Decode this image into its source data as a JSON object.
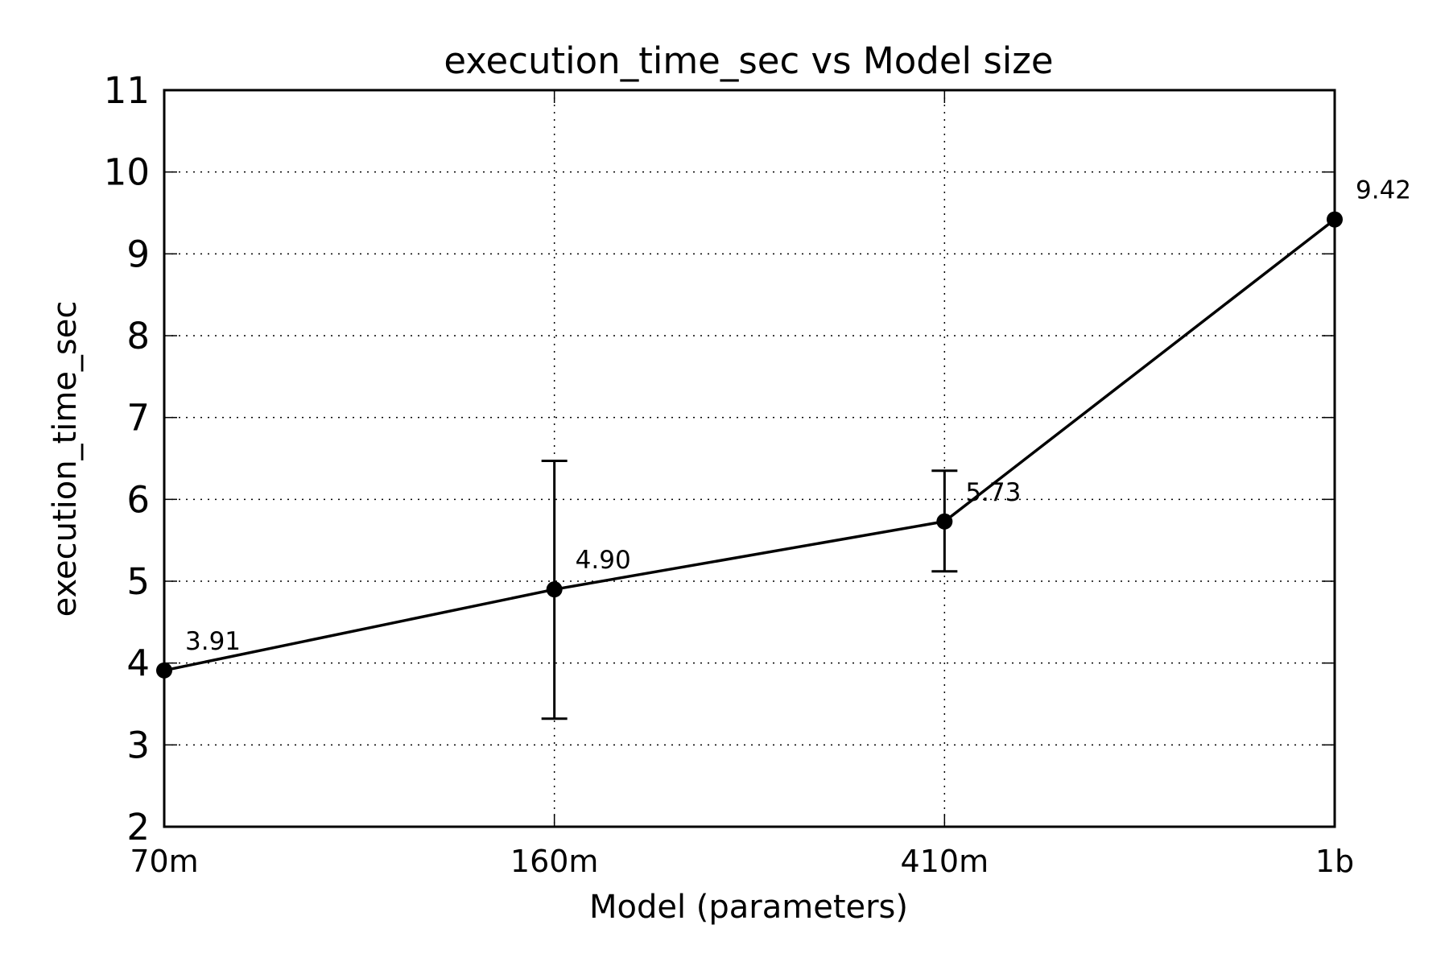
{
  "chart_data": {
    "type": "line",
    "title": "execution_time_sec vs Model size",
    "xlabel": "Model (parameters)",
    "ylabel": "execution_time_sec",
    "categories": [
      "70m",
      "160m",
      "410m",
      "1b"
    ],
    "values": [
      3.91,
      4.9,
      5.73,
      9.42
    ],
    "data_labels": [
      "3.91",
      "4.90",
      "5.73",
      "9.42"
    ],
    "error_low": [
      null,
      3.32,
      5.12,
      null
    ],
    "error_high": [
      null,
      6.47,
      6.35,
      null
    ],
    "ylim": [
      2,
      11
    ],
    "yticks": [
      2,
      3,
      4,
      5,
      6,
      7,
      8,
      9,
      10,
      11
    ],
    "ytick_labels": [
      "2",
      "3",
      "4",
      "5",
      "6",
      "7",
      "8",
      "9",
      "10",
      "11"
    ],
    "grid": true,
    "colors": {
      "line": "#000000",
      "marker": "#000000",
      "grid": "#000000"
    }
  }
}
